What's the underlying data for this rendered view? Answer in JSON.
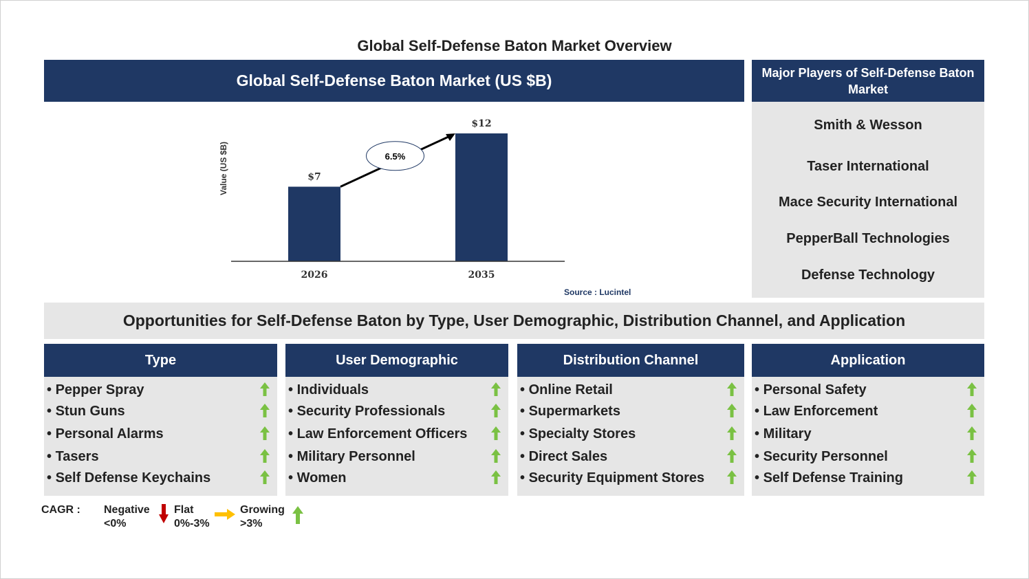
{
  "page_title": "Global Self-Defense Baton Market Overview",
  "chart_header": "Global Self-Defense Baton Market (US $B)",
  "chart_data": {
    "type": "bar",
    "categories": [
      "2026",
      "2035"
    ],
    "values": [
      7,
      12
    ],
    "value_labels": [
      "$7",
      "$12"
    ],
    "ylabel": "Value (US $B)",
    "cagr_label": "6.5%",
    "bar_color": "#1f3864"
  },
  "source": "Source : Lucintel",
  "players": {
    "header": "Major Players of Self-Defense Baton Market",
    "items": [
      "Smith & Wesson",
      "Taser International",
      "Mace Security International",
      "PepperBall Technologies",
      "Defense Technology"
    ]
  },
  "opportunities_title": "Opportunities for Self-Defense Baton by Type, User Demographic, Distribution Channel, and Application",
  "segments": [
    {
      "title": "Type",
      "items": [
        "Pepper Spray",
        "Stun Guns",
        "Personal Alarms",
        "Tasers",
        "Self Defense Keychains"
      ]
    },
    {
      "title": "User Demographic",
      "items": [
        "Individuals",
        "Security Professionals",
        "Law Enforcement Officers",
        "Military Personnel",
        "Women"
      ]
    },
    {
      "title": "Distribution Channel",
      "items": [
        "Online Retail",
        "Supermarkets",
        "Specialty Stores",
        "Direct Sales",
        "Security Equipment Stores"
      ]
    },
    {
      "title": "Application",
      "items": [
        "Personal Safety",
        "Law Enforcement",
        "Military",
        "Security Personnel",
        "Self Defense Training"
      ]
    }
  ],
  "legend": {
    "label": "CAGR :",
    "negative": [
      "Negative",
      "<0%"
    ],
    "flat": [
      "Flat",
      "0%-3%"
    ],
    "growing": [
      "Growing",
      ">3%"
    ]
  },
  "colors": {
    "navy": "#1f3864",
    "growth": "#7ac143",
    "negative": "#c00000",
    "flat": "#ffc000"
  }
}
